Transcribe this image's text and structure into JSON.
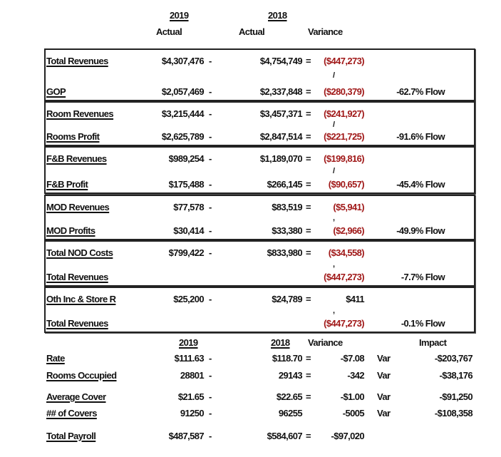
{
  "header": {
    "y2019": "2019",
    "y2018": "2018",
    "actual1": "Actual",
    "actual2": "Actual",
    "variance": "Variance"
  },
  "groups": [
    {
      "rows": [
        {
          "label": "Total Revenues",
          "v2019": "$4,307,476",
          "op1": "-",
          "v2018": "$4,754,749",
          "op2": "=",
          "variance": "($447,273)",
          "flow": ""
        },
        {
          "label": "GOP",
          "v2019": "$2,057,469",
          "op1": "-",
          "v2018": "$2,337,848",
          "op2": "=",
          "variance": "($280,379)",
          "flow": "-62.7% Flow"
        }
      ],
      "divider": "/"
    },
    {
      "rows": [
        {
          "label": "Room Revenues",
          "v2019": "$3,215,444",
          "op1": "-",
          "v2018": "$3,457,371",
          "op2": "=",
          "variance": "($241,927)",
          "flow": ""
        },
        {
          "label": "Rooms Profit",
          "v2019": "$2,625,789",
          "op1": "-",
          "v2018": "$2,847,514",
          "op2": "=",
          "variance": "($221,725)",
          "flow": "-91.6% Flow"
        }
      ],
      "divider": "/"
    },
    {
      "rows": [
        {
          "label": "F&B Revenues",
          "v2019": "$989,254",
          "op1": "-",
          "v2018": "$1,189,070",
          "op2": "=",
          "variance": "($199,816)",
          "flow": ""
        },
        {
          "label": "F&B Profit",
          "v2019": "$175,488",
          "op1": "-",
          "v2018": "$266,145",
          "op2": "=",
          "variance": "($90,657)",
          "flow": "-45.4% Flow"
        }
      ],
      "divider": "/"
    },
    {
      "rows": [
        {
          "label": "MOD Revenues",
          "v2019": "$77,578",
          "op1": "-",
          "v2018": "$83,519",
          "op2": "=",
          "variance": "($5,941)",
          "flow": ""
        },
        {
          "label": "MOD Profits",
          "v2019": "$30,414",
          "op1": "-",
          "v2018": "$33,380",
          "op2": "=",
          "variance": "($2,966)",
          "flow": "-49.9% Flow"
        }
      ],
      "divider": ","
    },
    {
      "rows": [
        {
          "label": "Total NOD Costs",
          "v2019": "$799,422",
          "op1": "-",
          "v2018": "$833,980",
          "op2": "=",
          "variance": "($34,558)",
          "flow": ""
        },
        {
          "label": "Total Revenues",
          "v2019": "",
          "op1": "",
          "v2018": "",
          "op2": "",
          "variance": "($447,273)",
          "flow": "-7.7% Flow"
        }
      ],
      "divider": ","
    },
    {
      "rows": [
        {
          "label": "Oth Inc & Store R",
          "v2019": "$25,200",
          "op1": "-",
          "v2018": "$24,789",
          "op2": "=",
          "variance": "$411",
          "flow": ""
        },
        {
          "label": "Total Revenues",
          "v2019": "",
          "op1": "",
          "v2018": "",
          "op2": "",
          "variance": "($447,273)",
          "flow": "-0.1% Flow"
        }
      ],
      "divider": ","
    }
  ],
  "bottom": {
    "header": {
      "y2019": "2019",
      "y2018": "2018",
      "variance": "Variance",
      "impact": "Impact"
    },
    "rows": [
      {
        "label": "Rate",
        "v2019": "$111.63",
        "op1": "-",
        "v2018": "$118.70",
        "op2": "=",
        "variance": "-$7.08",
        "var": "Var",
        "impact": "-$203,767"
      },
      {
        "label": "Rooms Occupied",
        "v2019": "28801",
        "op1": "-",
        "v2018": "29143",
        "op2": "=",
        "variance": "-342",
        "var": "Var",
        "impact": "-$38,176"
      },
      {
        "label": "Average Cover",
        "v2019": "$21.65",
        "op1": "-",
        "v2018": "$22.65",
        "op2": "=",
        "variance": "-$1.00",
        "var": "Var",
        "impact": "-$91,250"
      },
      {
        "label": "## of Covers",
        "v2019": "91250",
        "op1": "-",
        "v2018": "96255",
        "op2": "",
        "variance": "-5005",
        "var": "Var",
        "impact": "-$108,358"
      },
      {
        "label": "Total Payroll",
        "v2019": "$487,587",
        "op1": "-",
        "v2018": "$584,607",
        "op2": "=",
        "variance": "-$97,020",
        "var": "",
        "impact": ""
      }
    ]
  },
  "colors": {
    "negative": "#a01818",
    "text": "#111111"
  }
}
